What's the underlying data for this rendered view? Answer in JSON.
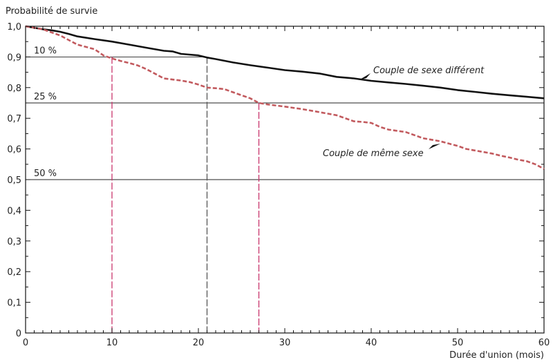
{
  "chart_data": {
    "type": "line",
    "ylabel": "Probabilité de survie",
    "xlabel": "Durée d'union (mois)",
    "xlim": [
      0,
      60
    ],
    "ylim": [
      0,
      1
    ],
    "x_ticks": [
      "0",
      "10",
      "20",
      "30",
      "40",
      "50",
      "60"
    ],
    "y_ticks": [
      "0",
      "0,1",
      "0,2",
      "0,3",
      "0,4",
      "0,5",
      "0,6",
      "0,7",
      "0,8",
      "0,9",
      "1,0"
    ],
    "grid": false,
    "series": [
      {
        "name": "Couple de sexe différent",
        "color": "#111111",
        "style": "solid",
        "x": [
          0,
          2,
          3,
          4,
          5,
          6,
          8,
          10,
          12,
          14,
          16,
          17,
          18,
          20,
          21,
          22,
          24,
          26,
          28,
          30,
          32,
          34,
          36,
          38,
          40,
          42,
          44,
          46,
          48,
          50,
          52,
          54,
          56,
          58,
          60
        ],
        "values": [
          1.0,
          0.99,
          0.987,
          0.982,
          0.975,
          0.967,
          0.958,
          0.95,
          0.94,
          0.93,
          0.92,
          0.918,
          0.91,
          0.905,
          0.898,
          0.893,
          0.882,
          0.873,
          0.865,
          0.857,
          0.852,
          0.846,
          0.835,
          0.83,
          0.822,
          0.817,
          0.812,
          0.806,
          0.8,
          0.792,
          0.786,
          0.78,
          0.775,
          0.77,
          0.765
        ]
      },
      {
        "name": "Couple de même sexe",
        "color": "#c25a5e",
        "style": "dashed",
        "x": [
          0,
          2,
          3,
          4,
          5,
          6,
          8,
          9,
          10,
          11,
          12,
          13,
          14,
          15,
          16,
          18,
          19,
          20,
          21,
          22,
          23,
          24,
          25,
          26,
          27,
          28,
          30,
          32,
          34,
          36,
          37,
          38,
          39,
          40,
          41,
          42,
          44,
          45,
          46,
          48,
          50,
          51,
          52,
          54,
          55,
          56,
          57,
          58,
          59,
          60
        ],
        "values": [
          1.0,
          0.99,
          0.98,
          0.97,
          0.955,
          0.94,
          0.925,
          0.905,
          0.895,
          0.887,
          0.88,
          0.872,
          0.86,
          0.845,
          0.83,
          0.823,
          0.818,
          0.81,
          0.8,
          0.798,
          0.795,
          0.785,
          0.775,
          0.765,
          0.75,
          0.745,
          0.738,
          0.73,
          0.72,
          0.71,
          0.7,
          0.69,
          0.688,
          0.685,
          0.672,
          0.663,
          0.655,
          0.645,
          0.635,
          0.625,
          0.61,
          0.6,
          0.595,
          0.585,
          0.578,
          0.572,
          0.565,
          0.56,
          0.55,
          0.535
        ]
      }
    ],
    "reference_lines": [
      {
        "label": "10 %",
        "y": 0.9,
        "x_end": 21
      },
      {
        "label": "25 %",
        "y": 0.75,
        "x_end": 60
      },
      {
        "label": "50 %",
        "y": 0.5,
        "x_end": 60
      }
    ],
    "drop_lines": [
      {
        "x": 10,
        "y": 0.9,
        "color": "#c8336b"
      },
      {
        "x": 21,
        "y": 0.9,
        "color": "#555555"
      },
      {
        "x": 27,
        "y": 0.75,
        "color": "#c8336b"
      }
    ]
  }
}
